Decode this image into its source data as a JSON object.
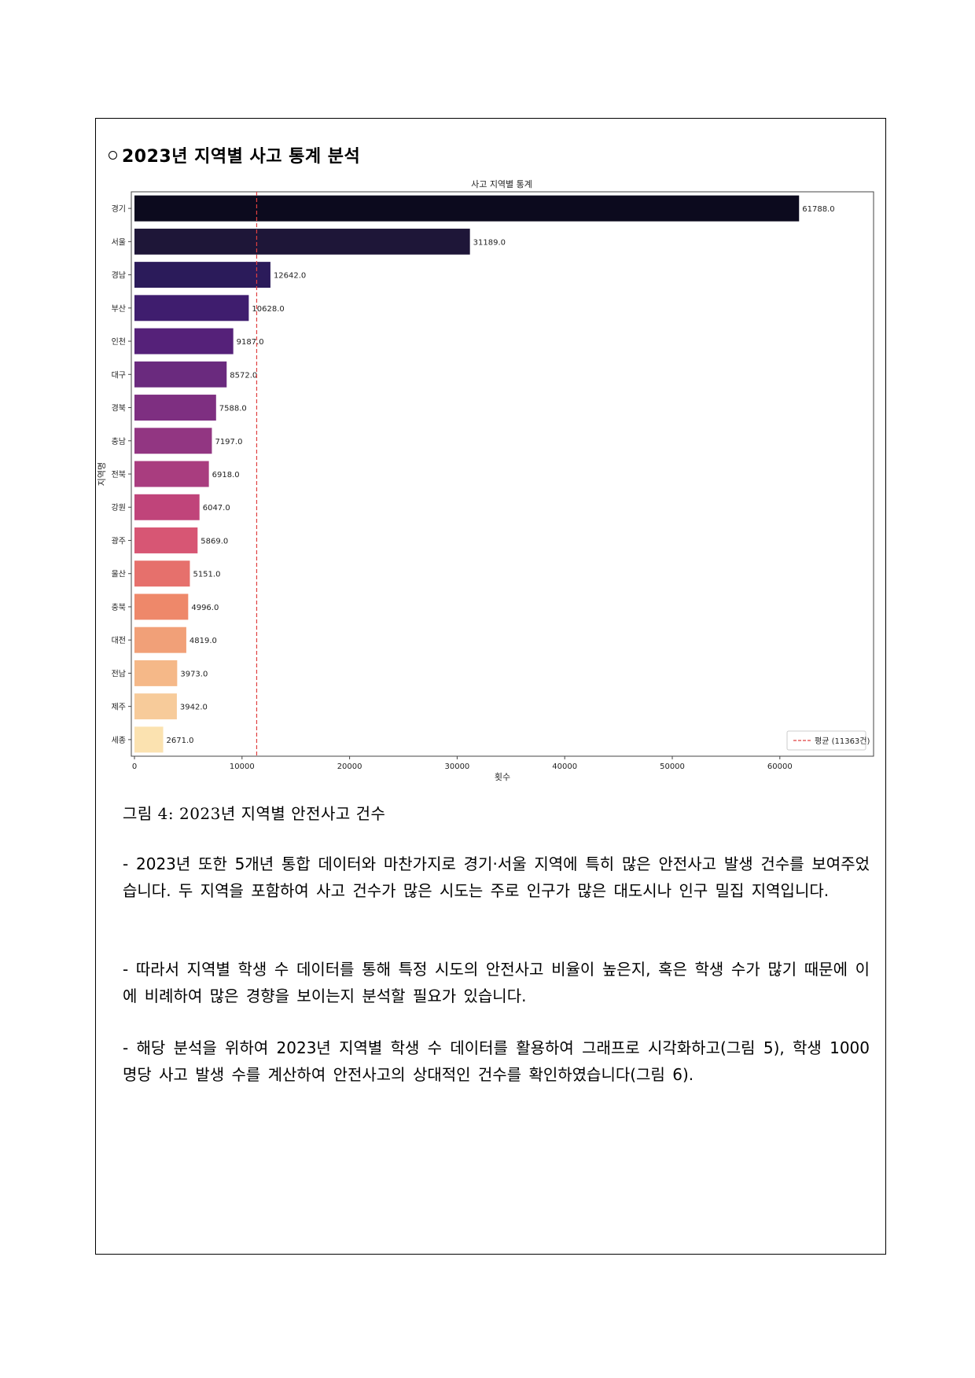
{
  "section_title": "2023년 지역별 사고 통계 분석",
  "caption": "그림 4: 2023년 지역별 안전사고 건수",
  "paragraphs": [
    "- 2023년 또한 5개년 통합 데이터와 마찬가지로 경기·서울 지역에 특히 많은 안전사고 발생 건수를 보여주었습니다. 두 지역을 포함하여 사고 건수가 많은 시도는 주로 인구가 많은 대도시나 인구 밀집 지역입니다.",
    "- 따라서 지역별 학생 수 데이터를 통해 특정 시도의 안전사고 비율이 높은지, 혹은 학생 수가 많기 때문에 이에 비례하여 많은 경향을 보이는지 분석할 필요가 있습니다.",
    "- 해당 분석을 위하여 2023년 지역별 학생 수 데이터를 활용하여 그래프로 시각화하고(그림 5), 학생 1000명당 사고 발생 수를 계산하여 안전사고의 상대적인 건수를 확인하였습니다(그림 6)."
  ],
  "chart_data": {
    "type": "bar",
    "orientation": "horizontal",
    "title": "사고 지역별 통계",
    "xlabel": "횟수",
    "ylabel": "지역명",
    "xlim": [
      0,
      65000
    ],
    "xticks": [
      0,
      10000,
      20000,
      30000,
      40000,
      50000,
      60000
    ],
    "categories": [
      "경기",
      "서울",
      "경남",
      "부산",
      "인천",
      "대구",
      "경북",
      "충남",
      "전북",
      "강원",
      "광주",
      "울산",
      "충북",
      "대전",
      "전남",
      "제주",
      "세종"
    ],
    "values": [
      61788,
      31189,
      12642,
      10628,
      9187,
      8572,
      7588,
      7197,
      6918,
      6047,
      5869,
      5151,
      4996,
      4819,
      3973,
      3942,
      2671
    ],
    "value_labels": [
      "61788.0",
      "31189.0",
      "12642.0",
      "10628.0",
      "9187.0",
      "8572.0",
      "7588.0",
      "7197.0",
      "6918.0",
      "6047.0",
      "5869.0",
      "5151.0",
      "4996.0",
      "4819.0",
      "3973.0",
      "3942.0",
      "2671.0"
    ],
    "colors": [
      "#0c0a1e",
      "#1e1638",
      "#2b1b5a",
      "#3f1d6e",
      "#552179",
      "#6a2a7e",
      "#7e2f81",
      "#923682",
      "#a93d7f",
      "#c0447a",
      "#d75674",
      "#e6706c",
      "#ee886a",
      "#f1a078",
      "#f5b888",
      "#f7cb9a",
      "#fbe2b0"
    ],
    "average": 11363,
    "legend_label": "평균 (11363건)",
    "legend_position": "lower-right",
    "average_line_color": "#e04040",
    "grid": false
  }
}
